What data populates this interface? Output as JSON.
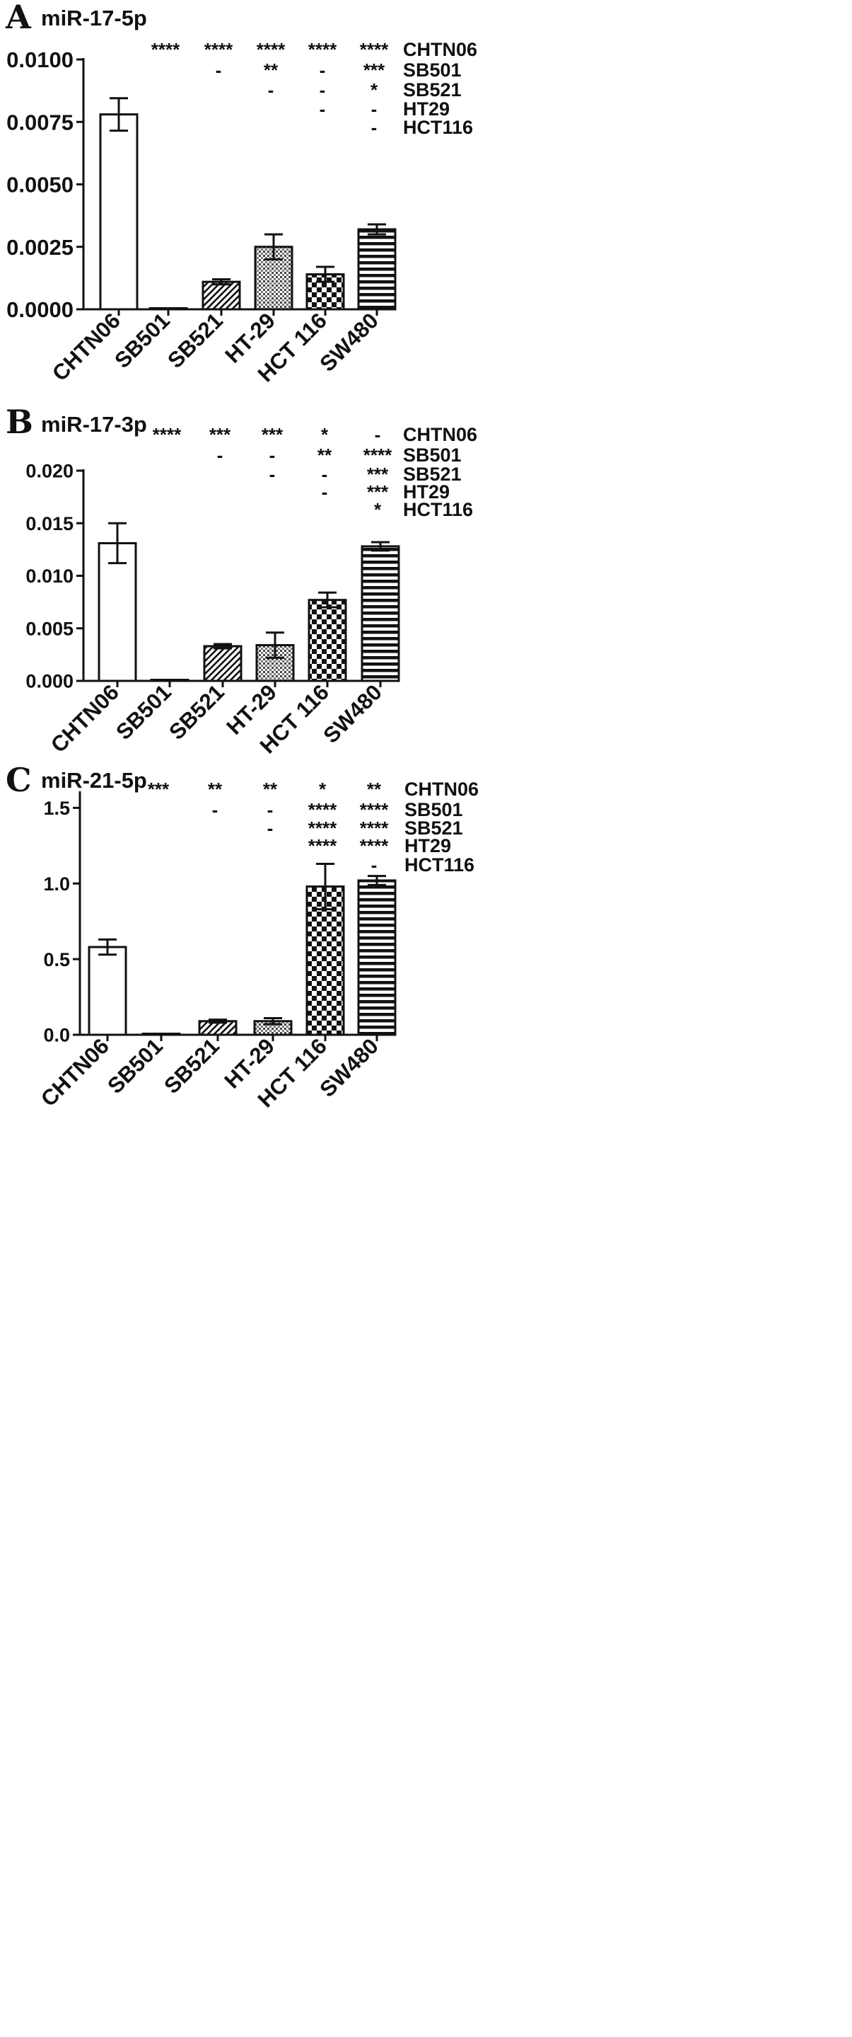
{
  "chart_data": [
    {
      "type": "bar",
      "panel": "A",
      "title": "miR-17-5p",
      "categories": [
        "CHTN06",
        "SB501",
        "SB521",
        "HT-29",
        "HCT 116",
        "SW480"
      ],
      "values": [
        0.0078,
        3e-05,
        0.0011,
        0.0025,
        0.0014,
        0.0032
      ],
      "error": [
        0.00065,
        1e-05,
        0.0001,
        0.0005,
        0.0003,
        0.0002
      ],
      "patterns": [
        "plain",
        "plain",
        "diagonal",
        "dots",
        "checker",
        "horizontal"
      ],
      "ylim": [
        0,
        0.01
      ],
      "yticks": [
        "0.0000",
        "0.0025",
        "0.0050",
        "0.0075",
        "0.0100"
      ],
      "ytick_values": [
        0,
        0.0025,
        0.005,
        0.0075,
        0.01
      ],
      "comparison_rows": [
        "CHTN06",
        "SB501",
        "SB521",
        "HT29",
        "HCT116"
      ],
      "significance": [
        [
          "",
          "****",
          "****",
          "****",
          "****",
          "****"
        ],
        [
          "",
          "",
          "-",
          "**",
          "-",
          "***"
        ],
        [
          "",
          "",
          "",
          "-",
          "-",
          "*"
        ],
        [
          "",
          "",
          "",
          "",
          "-",
          "-"
        ],
        [
          "",
          "",
          "",
          "",
          "",
          "-"
        ]
      ]
    },
    {
      "type": "bar",
      "panel": "B",
      "title": "miR-17-3p",
      "categories": [
        "CHTN06",
        "SB501",
        "SB521",
        "HT-29",
        "HCT 116",
        "SW480"
      ],
      "values": [
        0.0131,
        2e-05,
        0.0033,
        0.0034,
        0.0077,
        0.0128
      ],
      "error": [
        0.0019,
        1e-05,
        0.0002,
        0.0012,
        0.0007,
        0.0004
      ],
      "patterns": [
        "plain",
        "plain",
        "diagonal",
        "dots",
        "checker",
        "horizontal"
      ],
      "ylim": [
        0,
        0.02
      ],
      "yticks": [
        "0.000",
        "0.005",
        "0.010",
        "0.015",
        "0.020"
      ],
      "ytick_values": [
        0,
        0.005,
        0.01,
        0.015,
        0.02
      ],
      "comparison_rows": [
        "CHTN06",
        "SB501",
        "SB521",
        "HT29",
        "HCT116"
      ],
      "significance": [
        [
          "",
          "****",
          "***",
          "***",
          "*",
          "-"
        ],
        [
          "",
          "",
          "-",
          "-",
          "**",
          "****"
        ],
        [
          "",
          "",
          "",
          "-",
          "-",
          "***"
        ],
        [
          "",
          "",
          "",
          "",
          "-",
          "***"
        ],
        [
          "",
          "",
          "",
          "",
          "",
          "*"
        ]
      ]
    },
    {
      "type": "bar",
      "panel": "C",
      "title": "miR-21-5p",
      "categories": [
        "CHTN06",
        "SB501",
        "SB521",
        "HT-29",
        "HCT 116",
        "SW480"
      ],
      "values": [
        0.58,
        0.002,
        0.09,
        0.09,
        0.98,
        1.02
      ],
      "error": [
        0.05,
        0.001,
        0.01,
        0.02,
        0.15,
        0.03
      ],
      "patterns": [
        "plain",
        "plain",
        "diagonal",
        "dots",
        "checker",
        "horizontal"
      ],
      "ylim": [
        0,
        1.6
      ],
      "yticks": [
        "0.0",
        "0.5",
        "1.0",
        "1.5"
      ],
      "ytick_values": [
        0,
        0.5,
        1.0,
        1.5
      ],
      "comparison_rows": [
        "CHTN06",
        "SB501",
        "SB521",
        "HT29",
        "HCT116"
      ],
      "significance": [
        [
          "",
          "***",
          "**",
          "**",
          "*",
          "**"
        ],
        [
          "",
          "",
          "-",
          "-",
          "****",
          "****"
        ],
        [
          "",
          "",
          "",
          "-",
          "****",
          "****"
        ],
        [
          "",
          "",
          "",
          "",
          "****",
          "****"
        ],
        [
          "",
          "",
          "",
          "",
          "",
          "-"
        ]
      ]
    }
  ]
}
